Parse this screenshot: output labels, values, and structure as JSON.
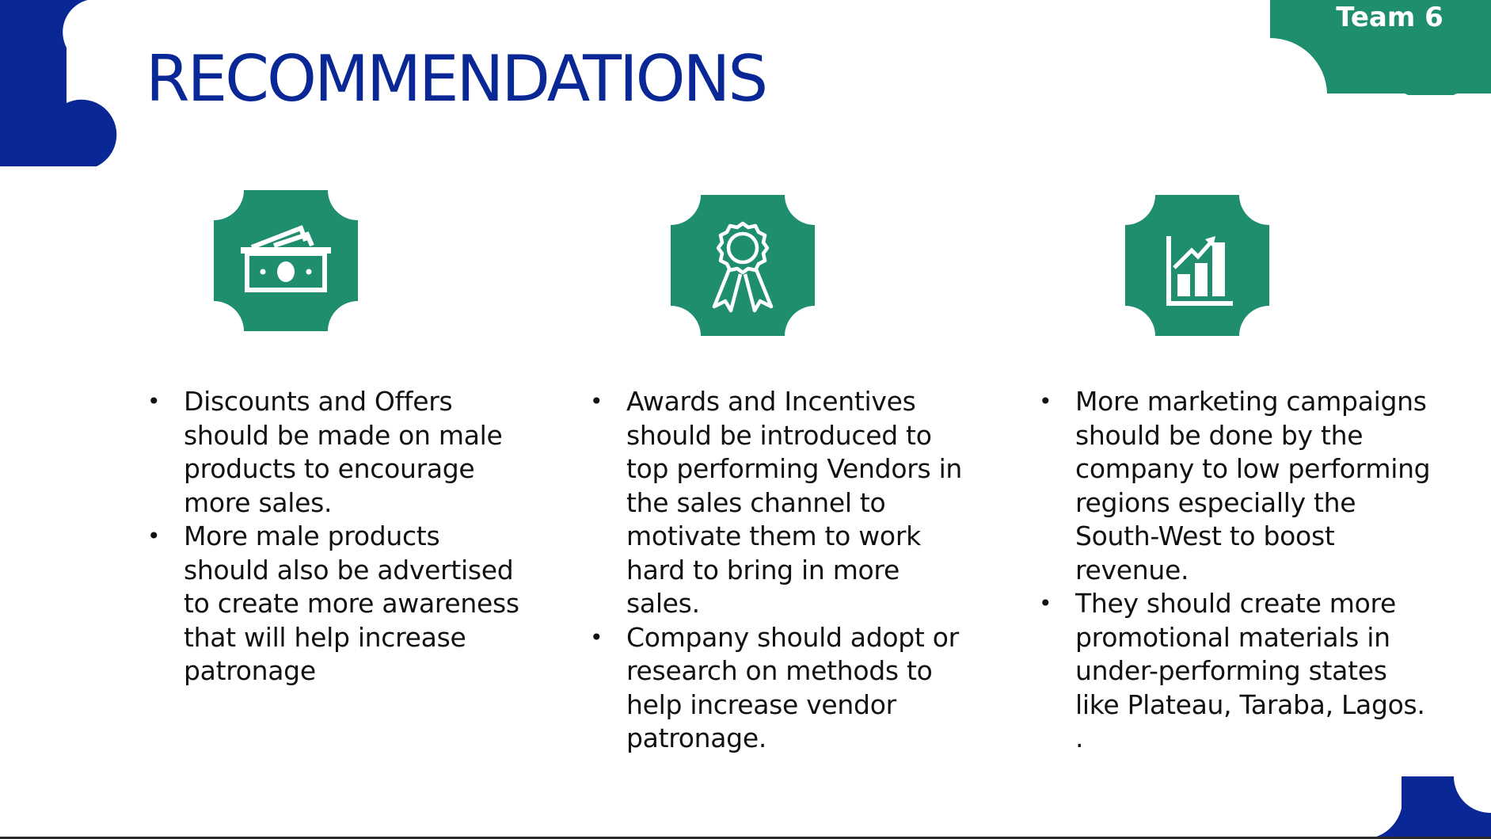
{
  "slide": {
    "title": "RECOMMENDATIONS",
    "team_label": "Team 6"
  },
  "colors": {
    "brand_blue": "#0a2895",
    "tile_green": "#1f8e6f",
    "text": "#111111"
  },
  "icons": [
    "money-bills-icon",
    "award-ribbon-icon",
    "growth-chart-icon"
  ],
  "columns": [
    {
      "bullets": [
        "Discounts and Offers should be made on male products to encourage more sales.",
        "More male products should also be advertised to create more awareness that will help increase patronage"
      ]
    },
    {
      "bullets": [
        "Awards  and Incentives should be introduced to top performing Vendors in the sales channel to motivate them to work hard to bring in more sales.",
        "Company should adopt or research on methods to help increase vendor patronage."
      ]
    },
    {
      "bullets": [
        "More marketing campaigns should be done by the company to low performing regions especially the South-West to boost revenue.",
        "They should create more promotional materials in under-performing states like Plateau, Taraba, Lagos. ."
      ]
    }
  ],
  "bullet_symbol": "•"
}
